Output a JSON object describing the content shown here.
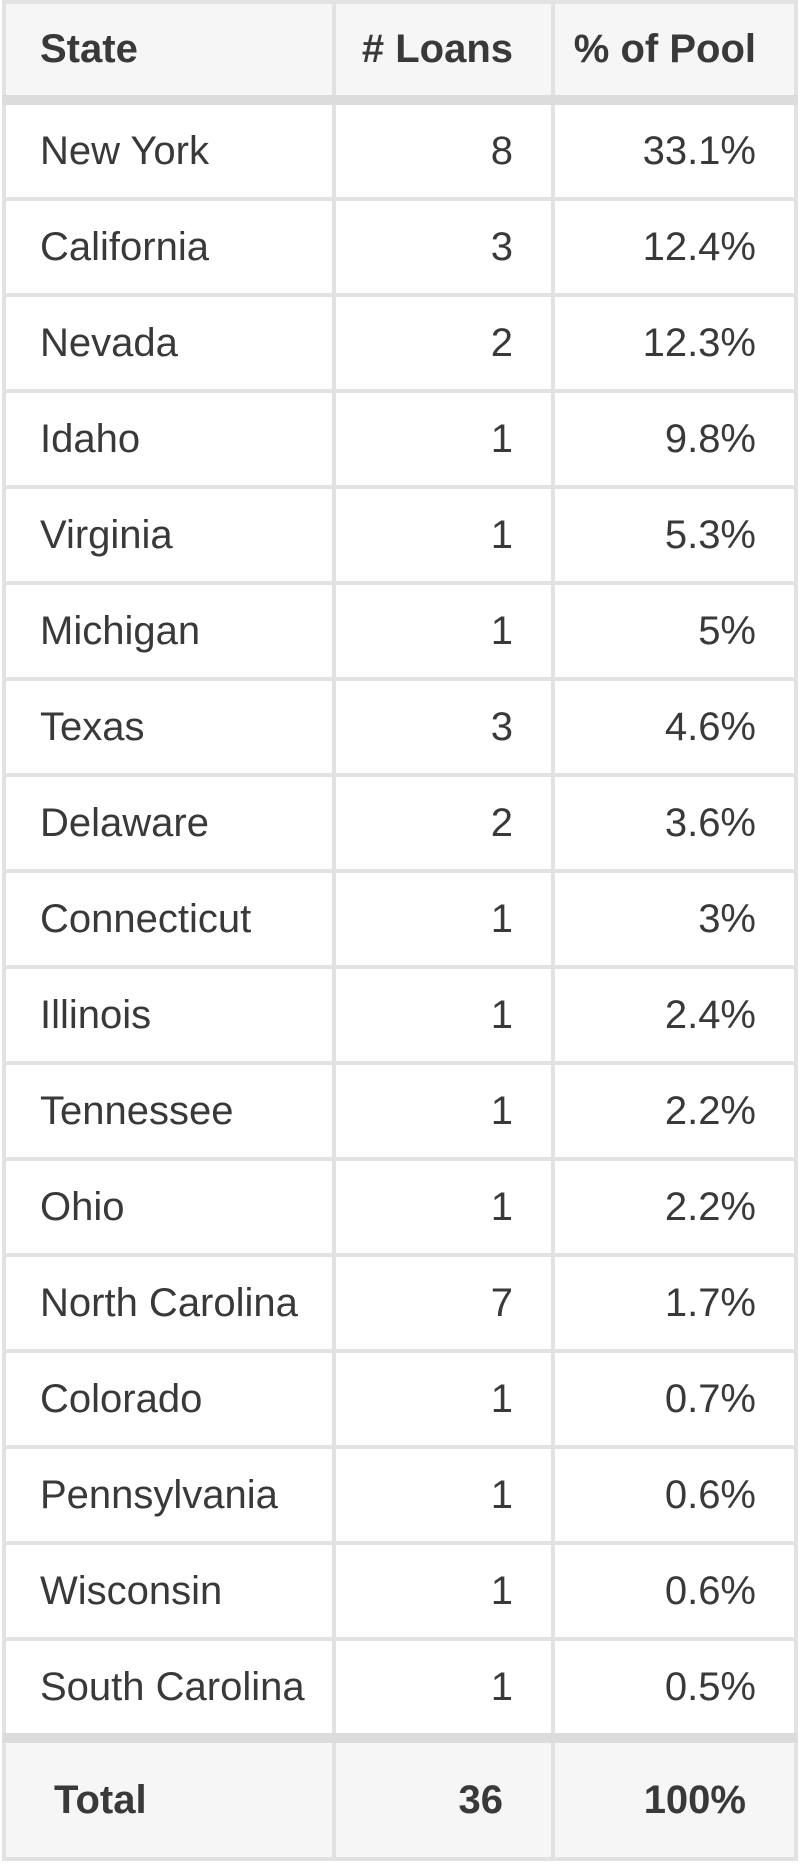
{
  "table": {
    "header": {
      "state": "State",
      "loans": "# Loans",
      "pct": "% of Pool"
    },
    "rows": [
      [
        "New York",
        "8",
        "33.1%"
      ],
      [
        "California",
        "3",
        "12.4%"
      ],
      [
        "Nevada",
        "2",
        "12.3%"
      ],
      [
        "Idaho",
        "1",
        "9.8%"
      ],
      [
        "Virginia",
        "1",
        "5.3%"
      ],
      [
        "Michigan",
        "1",
        "5%"
      ],
      [
        "Texas",
        "3",
        "4.6%"
      ],
      [
        "Delaware",
        "2",
        "3.6%"
      ],
      [
        "Connecticut",
        "1",
        "3%"
      ],
      [
        "Illinois",
        "1",
        "2.4%"
      ],
      [
        "Tennessee",
        "1",
        "2.2%"
      ],
      [
        "Ohio",
        "1",
        "2.2%"
      ],
      [
        "North Carolina",
        "7",
        "1.7%"
      ],
      [
        "Colorado",
        "1",
        "0.7%"
      ],
      [
        "Pennsylvania",
        "1",
        "0.6%"
      ],
      [
        "Wisconsin",
        "1",
        "0.6%"
      ],
      [
        "South Carolina",
        "1",
        "0.5%"
      ]
    ],
    "total": {
      "label": "Total",
      "loans": "36",
      "pct": "100%"
    }
  },
  "colors": {
    "header_bg": "#f6f6f6",
    "total_bg": "#f6f6f6",
    "row_bg": "#ffffff",
    "border_thin": "#e2e2e2",
    "border_thick": "#dcdcdc",
    "text": "#393939"
  }
}
